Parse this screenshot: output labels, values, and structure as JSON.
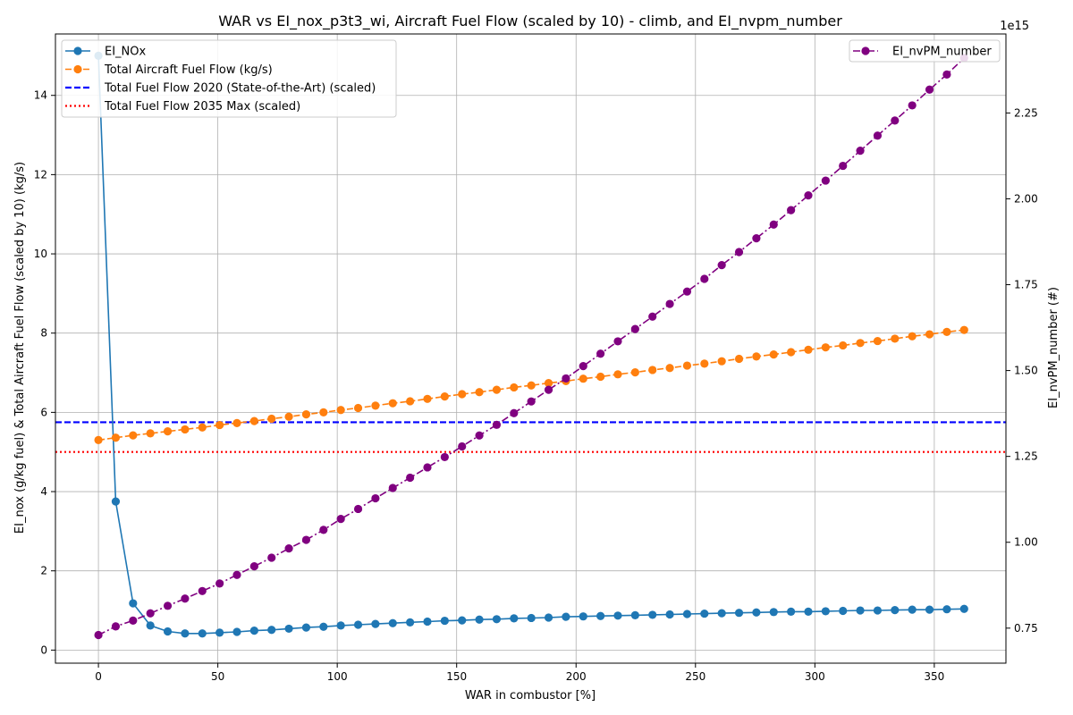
{
  "chart_data": {
    "type": "line",
    "title": "WAR vs EI_nox_p3t3_wi, Aircraft Fuel Flow (scaled by 10) - climb, and EI_nvpm_number",
    "xlabel": "WAR in combustor [%]",
    "ylabel_left": "EI_nox (g/kg fuel) & Total Aircraft Fuel Flow (scaled by 10) (kg/s)",
    "ylabel_right": "EI_nvPM_number (#)",
    "right_axis_offset_label": "1e15",
    "xlim": [
      -18,
      380
    ],
    "ylim_left": [
      -0.33,
      15.55
    ],
    "ylim_right": [
      0.648,
      2.48
    ],
    "x_ticks": [
      0,
      50,
      100,
      150,
      200,
      250,
      300,
      350
    ],
    "y_ticks_left": [
      0,
      2,
      4,
      6,
      8,
      10,
      12,
      14
    ],
    "y_ticks_right": [
      0.75,
      1.0,
      1.25,
      1.5,
      1.75,
      2.0,
      2.25
    ],
    "y_tick_labels_right": [
      "0.75",
      "1.00",
      "1.25",
      "1.50",
      "1.75",
      "2.00",
      "2.25"
    ],
    "grid": true,
    "legend_left_placement": "upper-left",
    "legend_right_placement": "upper-right",
    "x": [
      0.0,
      7.25,
      14.5,
      21.75,
      29.0,
      36.25,
      43.5,
      50.75,
      58.0,
      65.25,
      72.5,
      79.75,
      87.0,
      94.25,
      101.5,
      108.75,
      116.0,
      123.25,
      130.5,
      137.75,
      145.0,
      152.25,
      159.5,
      166.75,
      174.0,
      181.25,
      188.5,
      195.75,
      203.0,
      210.25,
      217.5,
      224.75,
      232.0,
      239.25,
      246.5,
      253.75,
      261.0,
      268.25,
      275.5,
      282.75,
      290.0,
      297.25,
      304.5,
      311.75,
      319.0,
      326.25,
      333.5,
      340.75,
      348.0,
      355.25,
      362.5
    ],
    "series": [
      {
        "name": "EI_NOx",
        "axis": "left",
        "color": "#1f77b4",
        "style": "solid",
        "marker": true,
        "values": [
          15.0,
          3.75,
          1.18,
          0.62,
          0.47,
          0.42,
          0.42,
          0.44,
          0.46,
          0.49,
          0.51,
          0.54,
          0.57,
          0.59,
          0.62,
          0.64,
          0.66,
          0.68,
          0.7,
          0.72,
          0.74,
          0.75,
          0.77,
          0.78,
          0.8,
          0.81,
          0.82,
          0.84,
          0.85,
          0.86,
          0.87,
          0.88,
          0.89,
          0.9,
          0.91,
          0.92,
          0.93,
          0.94,
          0.95,
          0.96,
          0.97,
          0.97,
          0.98,
          0.99,
          1.0,
          1.0,
          1.01,
          1.02,
          1.02,
          1.03,
          1.04
        ]
      },
      {
        "name": "Total Aircraft Fuel Flow (kg/s)",
        "axis": "left",
        "color": "#ff7f0e",
        "style": "dashed",
        "marker": true,
        "values": [
          5.3,
          5.36,
          5.42,
          5.47,
          5.52,
          5.57,
          5.62,
          5.68,
          5.73,
          5.78,
          5.84,
          5.89,
          5.95,
          6.0,
          6.06,
          6.11,
          6.17,
          6.23,
          6.28,
          6.34,
          6.4,
          6.46,
          6.51,
          6.57,
          6.63,
          6.68,
          6.74,
          6.79,
          6.85,
          6.9,
          6.96,
          7.01,
          7.07,
          7.12,
          7.18,
          7.23,
          7.29,
          7.35,
          7.41,
          7.46,
          7.52,
          7.58,
          7.64,
          7.69,
          7.75,
          7.8,
          7.86,
          7.92,
          7.97,
          8.03,
          8.08
        ]
      },
      {
        "name": "EI_nvPM_number",
        "axis": "right",
        "color": "#800080",
        "style": "dashdot",
        "marker": true,
        "values": [
          0.73,
          0.755,
          0.772,
          0.793,
          0.815,
          0.836,
          0.858,
          0.88,
          0.905,
          0.93,
          0.955,
          0.982,
          1.007,
          1.036,
          1.068,
          1.097,
          1.128,
          1.158,
          1.188,
          1.218,
          1.248,
          1.279,
          1.311,
          1.342,
          1.376,
          1.41,
          1.444,
          1.477,
          1.513,
          1.549,
          1.585,
          1.621,
          1.657,
          1.694,
          1.73,
          1.767,
          1.807,
          1.845,
          1.885,
          1.925,
          1.967,
          2.01,
          2.053,
          2.096,
          2.14,
          2.184,
          2.228,
          2.272,
          2.318,
          2.362,
          2.41
        ]
      }
    ],
    "reference_lines": [
      {
        "name": "Total Fuel Flow 2020 (State-of-the-Art) (scaled)",
        "y": 5.75,
        "color": "#0000ff",
        "style": "dashed"
      },
      {
        "name": "Total Fuel Flow 2035 Max (scaled)",
        "y": 5.0,
        "color": "#ff0000",
        "style": "dotted"
      }
    ]
  }
}
